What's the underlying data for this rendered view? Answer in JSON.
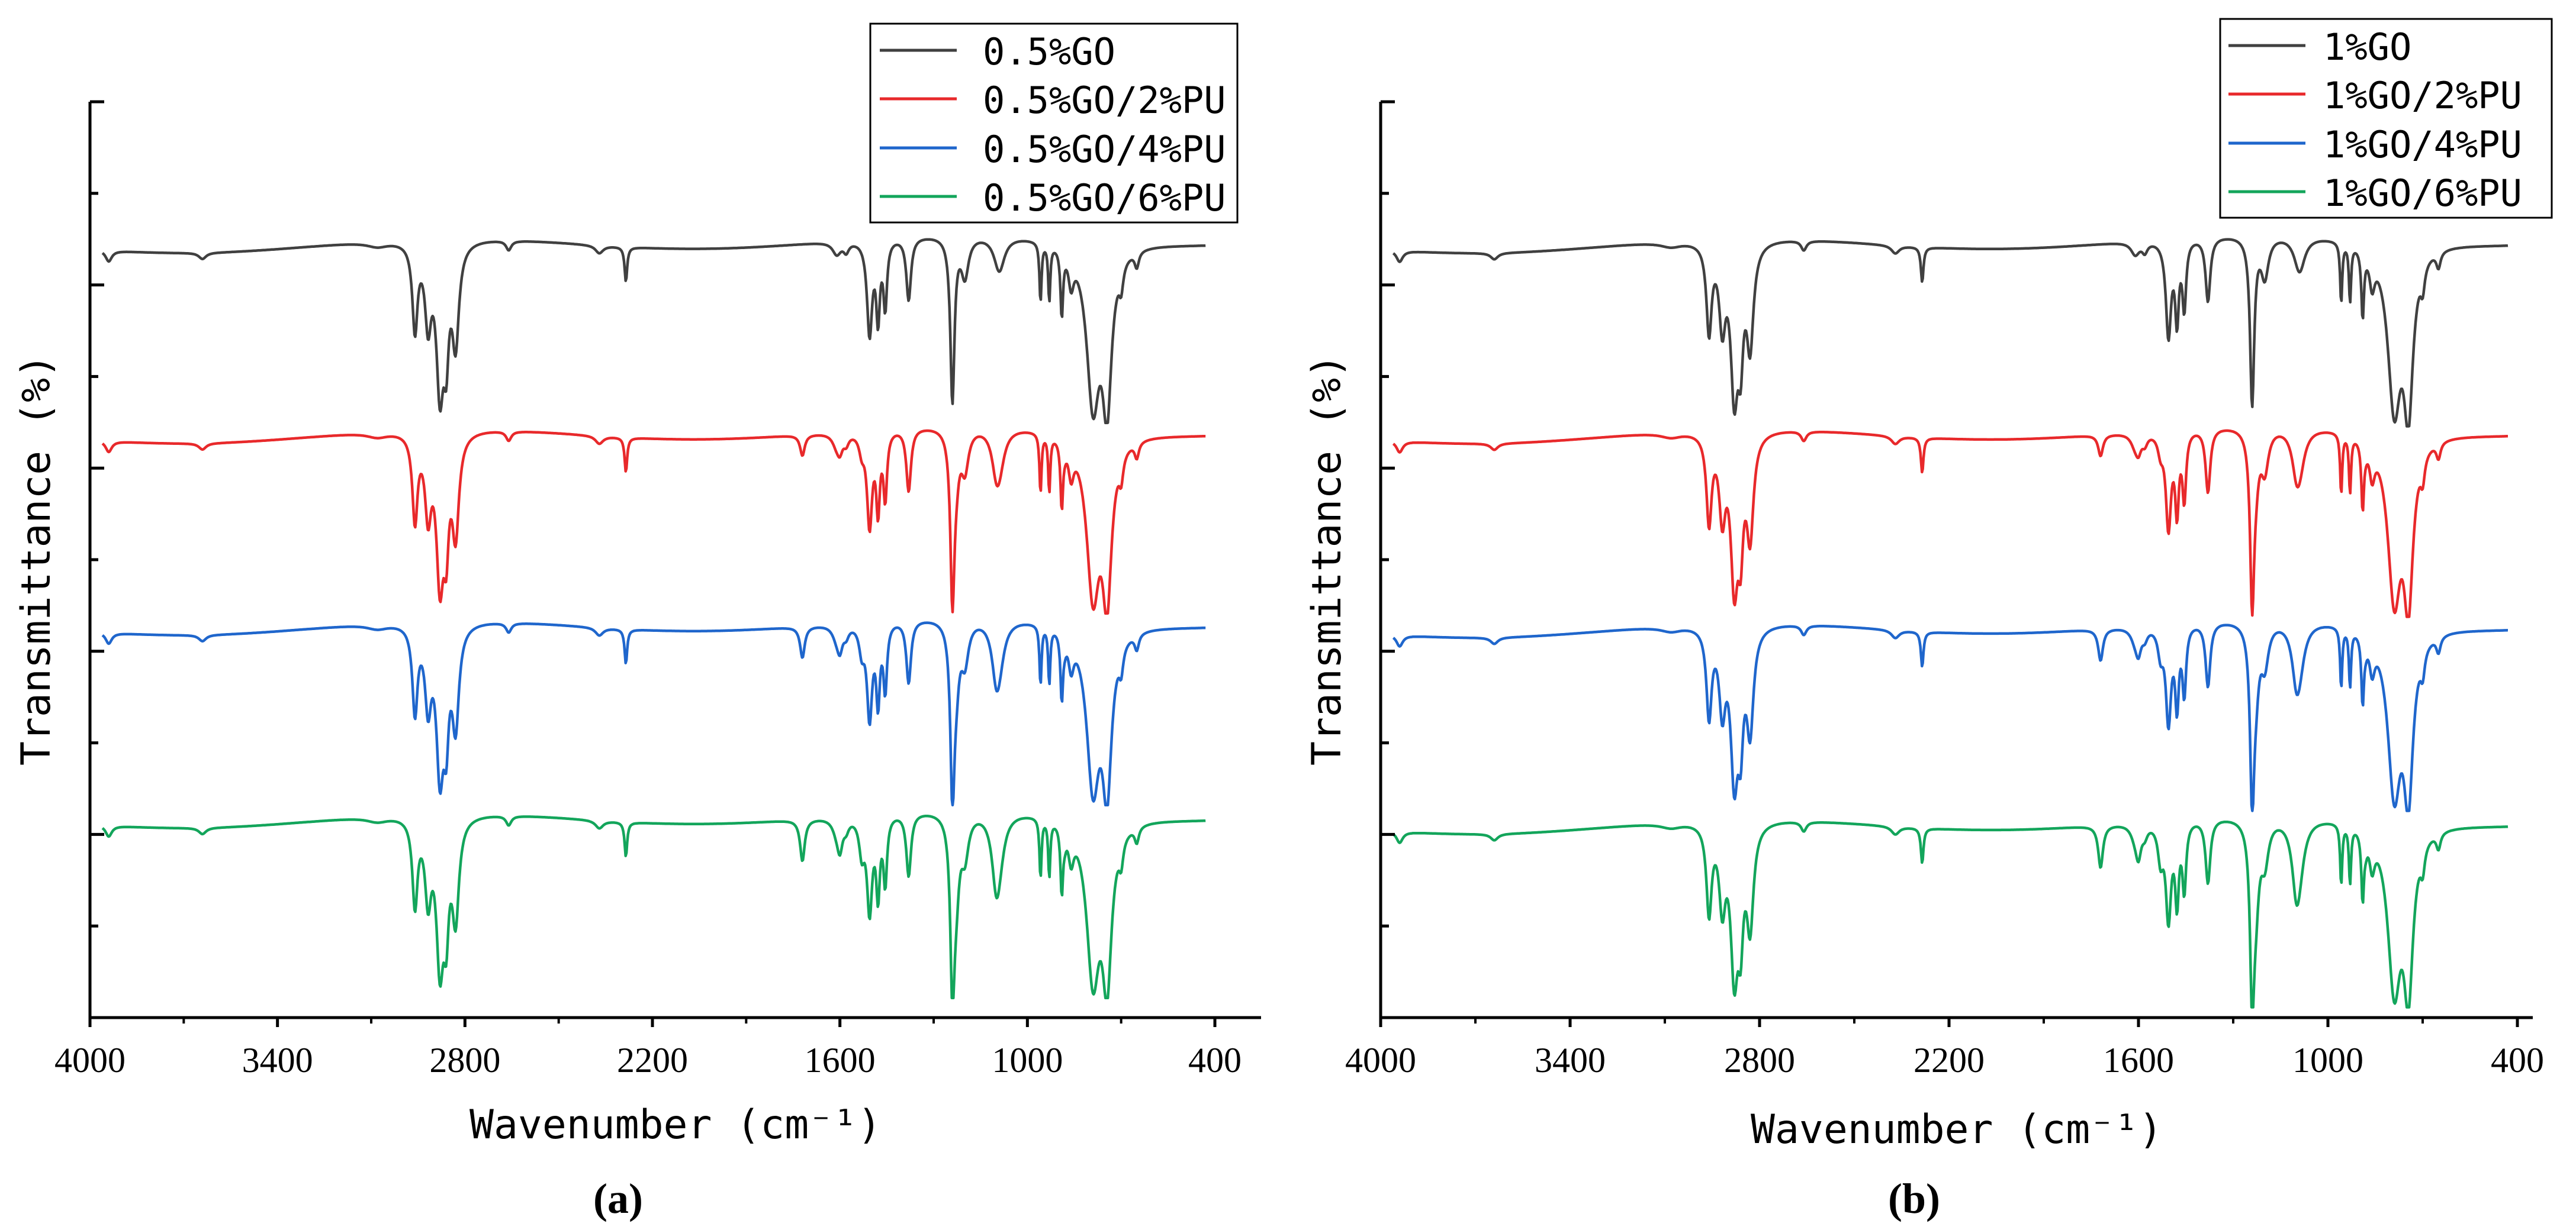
{
  "figure": {
    "caption_a": "(a)",
    "caption_b": "(b)"
  },
  "chart_data": [
    {
      "type": "line",
      "panel": "a",
      "caption": "(a)",
      "xlabel": "Wavenumber (cm⁻¹)",
      "ylabel": "Transmittance (%)",
      "xlim": [
        4000,
        400
      ],
      "x_reversed": true,
      "xticks": [
        4000,
        3400,
        2800,
        2200,
        1600,
        1000,
        400
      ],
      "yticks_shown": false,
      "grid": false,
      "legend_position": "top-right",
      "series": [
        {
          "name": "0.5%GO",
          "color": "#404040",
          "offset": 0.0
        },
        {
          "name": "0.5%GO/2%PU",
          "color": "#e8292b",
          "offset": 1.0
        },
        {
          "name": "0.5%GO/4%PU",
          "color": "#1f66cc",
          "offset": 2.0
        },
        {
          "name": "0.5%GO/6%PU",
          "color": "#13a55b",
          "offset": 3.0
        }
      ]
    },
    {
      "type": "line",
      "panel": "b",
      "caption": "(b)",
      "xlabel": "Wavenumber (cm⁻¹)",
      "ylabel": "Transmittance (%)",
      "xlim": [
        4000,
        400
      ],
      "x_reversed": true,
      "xticks": [
        4000,
        3400,
        2800,
        2200,
        1600,
        1000,
        400
      ],
      "yticks_shown": false,
      "grid": false,
      "legend_position": "top-right",
      "series": [
        {
          "name": "1%GO",
          "color": "#404040",
          "offset": 0.0
        },
        {
          "name": "1%GO/2%PU",
          "color": "#e8292b",
          "offset": 1.0
        },
        {
          "name": "1%GO/4%PU",
          "color": "#1f66cc",
          "offset": 2.0
        },
        {
          "name": "1%GO/6%PU",
          "color": "#13a55b",
          "offset": 3.0
        }
      ]
    }
  ],
  "spectrum": {
    "x_range": [
      3960,
      430
    ],
    "baseline_peaks": [
      [
        3940,
        0.07,
        12
      ],
      [
        3640,
        0.04,
        14
      ],
      [
        3080,
        0.03,
        40
      ],
      [
        2960,
        0.55,
        10
      ],
      [
        2918,
        0.48,
        12
      ],
      [
        2880,
        0.9,
        14
      ],
      [
        2860,
        0.55,
        10
      ],
      [
        2830,
        0.62,
        13
      ],
      [
        2660,
        0.06,
        10
      ],
      [
        2370,
        0.05,
        15
      ],
      [
        2285,
        0.22,
        5
      ],
      [
        1610,
        0.08,
        16
      ],
      [
        1580,
        0.06,
        10
      ],
      [
        1505,
        0.6,
        10
      ],
      [
        1478,
        0.48,
        7
      ],
      [
        1455,
        0.42,
        7
      ],
      [
        1380,
        0.4,
        9
      ],
      [
        1240,
        1.05,
        8
      ],
      [
        1200,
        0.25,
        14
      ],
      [
        1090,
        0.22,
        20
      ],
      [
        958,
        0.38,
        4
      ],
      [
        930,
        0.36,
        4
      ],
      [
        890,
        0.42,
        5
      ],
      [
        860,
        0.2,
        10
      ],
      [
        790,
        1.0,
        25
      ],
      [
        745,
        0.95,
        18
      ],
      [
        700,
        0.15,
        8
      ],
      [
        650,
        0.1,
        8
      ]
    ],
    "pu_peaks": [
      [
        1720,
        0.22,
        9
      ],
      [
        1600,
        0.14,
        10
      ],
      [
        1530,
        0.18,
        10
      ],
      [
        1228,
        0.35,
        12
      ],
      [
        1100,
        0.3,
        16
      ],
      [
        880,
        0.05,
        6
      ]
    ],
    "pu_scale": [
      0.0,
      0.6,
      0.9,
      1.2
    ]
  }
}
